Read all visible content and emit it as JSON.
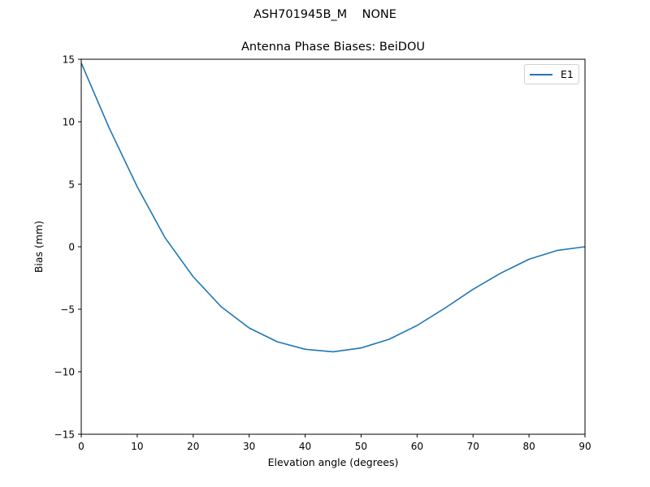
{
  "figure": {
    "suptitle": "ASH701945B_M    NONE",
    "title": "Antenna Phase Biases: BeiDOU",
    "xlabel": "Elevation angle (degrees)",
    "ylabel": "Bias (mm)",
    "legend": [
      {
        "label": "E1",
        "color": "#1f77b4"
      }
    ]
  },
  "chart_data": {
    "type": "line",
    "title": "Antenna Phase Biases: BeiDOU",
    "suptitle": "ASH701945B_M    NONE",
    "xlabel": "Elevation angle (degrees)",
    "ylabel": "Bias (mm)",
    "xlim": [
      0,
      90
    ],
    "ylim": [
      -15,
      15
    ],
    "xticks": [
      0,
      10,
      20,
      30,
      40,
      50,
      60,
      70,
      80,
      90
    ],
    "yticks": [
      -15,
      -10,
      -5,
      0,
      5,
      10,
      15
    ],
    "ytick_labels": [
      "−15",
      "−10",
      "−5",
      "0",
      "5",
      "10",
      "15"
    ],
    "grid": false,
    "legend_position": "upper right",
    "x": [
      0,
      5,
      10,
      15,
      20,
      25,
      30,
      35,
      40,
      45,
      50,
      55,
      60,
      65,
      70,
      75,
      80,
      85,
      90
    ],
    "series": [
      {
        "name": "E1",
        "color": "#1f77b4",
        "values": [
          14.7,
          9.5,
          4.8,
          0.7,
          -2.4,
          -4.8,
          -6.5,
          -7.6,
          -8.2,
          -8.4,
          -8.1,
          -7.4,
          -6.3,
          -4.9,
          -3.4,
          -2.1,
          -1.0,
          -0.3,
          0.0
        ]
      }
    ]
  }
}
